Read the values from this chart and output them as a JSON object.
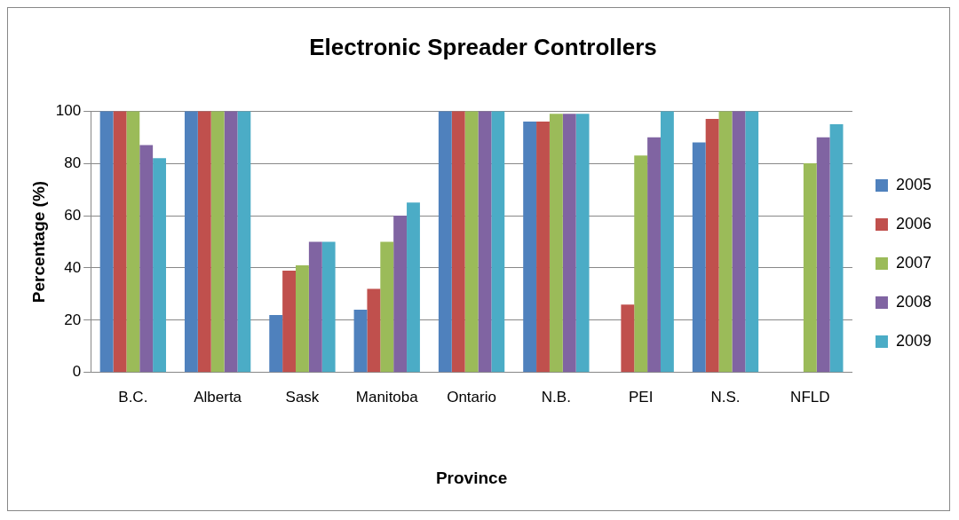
{
  "chart_data": {
    "type": "bar",
    "title": "Electronic Spreader Controllers",
    "xlabel": "Province",
    "ylabel": "Percentage (%)",
    "categories": [
      "B.C.",
      "Alberta",
      "Sask",
      "Manitoba",
      "Ontario",
      "N.B.",
      "PEI",
      "N.S.",
      "NFLD"
    ],
    "series": [
      {
        "name": "2005",
        "color": "#4f81bd",
        "values": [
          100,
          100,
          22,
          24,
          100,
          96,
          0,
          88,
          0
        ]
      },
      {
        "name": "2006",
        "color": "#c0504d",
        "values": [
          100,
          100,
          39,
          32,
          100,
          96,
          26,
          97,
          0
        ]
      },
      {
        "name": "2007",
        "color": "#9bbb59",
        "values": [
          100,
          100,
          41,
          50,
          100,
          99,
          83,
          100,
          80
        ]
      },
      {
        "name": "2008",
        "color": "#8064a2",
        "values": [
          87,
          100,
          50,
          60,
          100,
          99,
          90,
          100,
          90
        ]
      },
      {
        "name": "2009",
        "color": "#4bacc6",
        "values": [
          82,
          100,
          50,
          65,
          100,
          99,
          100,
          100,
          95
        ]
      }
    ],
    "ylim": [
      0,
      100
    ],
    "yticks": [
      0,
      20,
      40,
      60,
      80,
      100
    ],
    "grid": "y",
    "legend": "right"
  }
}
